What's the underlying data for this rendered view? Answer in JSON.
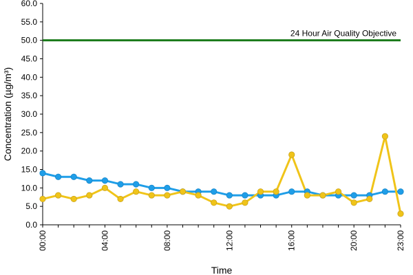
{
  "chart_data": {
    "type": "line",
    "title": "",
    "xlabel": "Time",
    "ylabel": "Concentration (µg/m³)",
    "ylim": [
      0,
      60
    ],
    "y_ticks": [
      "0.0",
      "5.0",
      "10.0",
      "15.0",
      "20.0",
      "25.0",
      "30.0",
      "35.0",
      "40.0",
      "45.0",
      "50.0",
      "55.0",
      "60.0"
    ],
    "x_hours": [
      0,
      1,
      2,
      3,
      4,
      5,
      6,
      7,
      8,
      9,
      10,
      11,
      12,
      13,
      14,
      15,
      16,
      17,
      18,
      19,
      20,
      21,
      22,
      23
    ],
    "x_tick_labels": [
      "00:00",
      "04:00",
      "08:00",
      "12:00",
      "16:00",
      "20:00",
      "23:00"
    ],
    "x_tick_hours": [
      0,
      4,
      8,
      12,
      16,
      20,
      23
    ],
    "grid": false,
    "objective": {
      "value": 50,
      "label": "24 Hour Air Quality Objective",
      "color": "#1a7a1a"
    },
    "series": [
      {
        "color": "#1f9ee8",
        "values": [
          14,
          13,
          13,
          12,
          12,
          11,
          11,
          10,
          10,
          9,
          9,
          9,
          8,
          8,
          8,
          8,
          9,
          9,
          8,
          8,
          8,
          8,
          9,
          9
        ]
      },
      {
        "color": "#f0c419",
        "values": [
          7,
          8,
          7,
          8,
          10,
          7,
          9,
          8,
          8,
          9,
          8,
          6,
          5,
          6,
          9,
          9,
          19,
          8,
          8,
          9,
          6,
          7,
          24,
          3
        ]
      }
    ]
  }
}
